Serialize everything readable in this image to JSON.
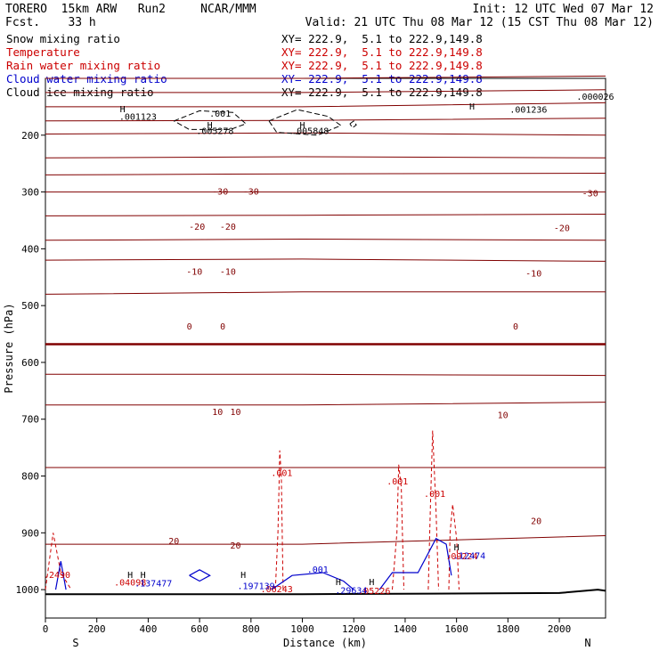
{
  "header": {
    "model": "TORERO  15km ARW   Run2     NCAR/MMM",
    "init": "Init: 12 UTC Wed 07 Mar 12",
    "fcst": "Fcst.    33 h",
    "valid": "Valid: 21 UTC Thu 08 Mar 12 (15 CST Thu 08 Mar 12)"
  },
  "legend": [
    {
      "label": "Snow mixing ratio",
      "xy": "XY= 222.9,  5.1 to 222.9,149.8",
      "color": "#000000"
    },
    {
      "label": "Temperature",
      "xy": "XY= 222.9,  5.1 to 222.9,149.8",
      "color": "#cc0000"
    },
    {
      "label": "Rain water mixing ratio",
      "xy": "XY= 222.9,  5.1 to 222.9,149.8",
      "color": "#cc0000"
    },
    {
      "label": "Cloud water mixing ratio",
      "xy": "XY= 222.9,  5.1 to 222.9,149.8",
      "color": "#0000cc"
    },
    {
      "label": "Cloud ice mixing ratio",
      "xy": "XY= 222.9,  5.1 to 222.9,149.8",
      "color": "#000000"
    }
  ],
  "chart_data": {
    "type": "line",
    "title": "",
    "xlabel": "Distance (km)",
    "ylabel": "Pressure (hPa)",
    "xlim": [
      0,
      2180
    ],
    "ylim": [
      1050,
      100
    ],
    "x_ticks": [
      0,
      200,
      400,
      600,
      800,
      1000,
      1200,
      1400,
      1600,
      1800,
      2000
    ],
    "y_ticks": [
      200,
      300,
      400,
      500,
      600,
      700,
      800,
      900,
      1000
    ],
    "endpoints": {
      "left": "S",
      "right": "N"
    },
    "colors": {
      "temperature": "#800000",
      "rain": "#cc0000",
      "cloud_water": "#0000cc",
      "snow": "#000000",
      "terrain": "#000000"
    },
    "temperature_isotherms": [
      {
        "value": -60,
        "points": [
          [
            0,
            100
          ],
          [
            1000,
            100
          ],
          [
            2180,
            96
          ]
        ]
      },
      {
        "value": -55,
        "points": [
          [
            0,
            125
          ],
          [
            1000,
            125
          ],
          [
            2180,
            120
          ]
        ]
      },
      {
        "value": -50,
        "points": [
          [
            0,
            150
          ],
          [
            1000,
            150
          ],
          [
            2180,
            143
          ]
        ]
      },
      {
        "value": -45,
        "points": [
          [
            0,
            175
          ],
          [
            1000,
            174
          ],
          [
            2180,
            170
          ]
        ]
      },
      {
        "value": -40,
        "points": [
          [
            0,
            198
          ],
          [
            1000,
            196
          ],
          [
            2180,
            200
          ]
        ]
      },
      {
        "value": -35,
        "points": [
          [
            0,
            240
          ],
          [
            1000,
            238
          ],
          [
            2180,
            240
          ]
        ]
      },
      {
        "value": -30,
        "points": [
          [
            0,
            270
          ],
          [
            1000,
            268
          ],
          [
            2180,
            267
          ]
        ]
      },
      {
        "value": -25,
        "points": [
          [
            0,
            300
          ],
          [
            1000,
            300
          ],
          [
            2180,
            300
          ]
        ]
      },
      {
        "value": -20,
        "points": [
          [
            0,
            342
          ],
          [
            1000,
            341
          ],
          [
            2180,
            339
          ]
        ]
      },
      {
        "value": -15,
        "points": [
          [
            0,
            385
          ],
          [
            1000,
            383
          ],
          [
            2180,
            385
          ]
        ]
      },
      {
        "value": -10,
        "points": [
          [
            0,
            420
          ],
          [
            1000,
            418
          ],
          [
            2180,
            422
          ]
        ]
      },
      {
        "value": -5,
        "points": [
          [
            0,
            480
          ],
          [
            1000,
            476
          ],
          [
            2180,
            476
          ]
        ]
      },
      {
        "value": 0,
        "points": [
          [
            0,
            568
          ],
          [
            1000,
            568
          ],
          [
            2180,
            568
          ]
        ]
      },
      {
        "value": 5,
        "points": [
          [
            0,
            621
          ],
          [
            1000,
            621
          ],
          [
            2180,
            623
          ]
        ]
      },
      {
        "value": 10,
        "points": [
          [
            0,
            675
          ],
          [
            1000,
            675
          ],
          [
            2180,
            670
          ]
        ]
      },
      {
        "value": 15,
        "points": [
          [
            0,
            785
          ],
          [
            1000,
            785
          ],
          [
            2180,
            785
          ]
        ]
      },
      {
        "value": 20,
        "points": [
          [
            0,
            920
          ],
          [
            1000,
            920
          ],
          [
            2180,
            905
          ]
        ]
      }
    ],
    "temperature_labels": [
      {
        "text": "-30",
        "x": 680,
        "p": 300
      },
      {
        "text": "-30",
        "x": 800,
        "p": 300
      },
      {
        "text": "-30",
        "x": 2120,
        "p": 303
      },
      {
        "text": "-20",
        "x": 590,
        "p": 362
      },
      {
        "text": "-20",
        "x": 710,
        "p": 362
      },
      {
        "text": "-20",
        "x": 2010,
        "p": 364
      },
      {
        "text": "-10",
        "x": 580,
        "p": 441
      },
      {
        "text": "-10",
        "x": 710,
        "p": 441
      },
      {
        "text": "-10",
        "x": 1900,
        "p": 444
      },
      {
        "text": "0",
        "x": 560,
        "p": 537
      },
      {
        "text": "0",
        "x": 690,
        "p": 537
      },
      {
        "text": "0",
        "x": 1830,
        "p": 537
      },
      {
        "text": "10",
        "x": 670,
        "p": 688
      },
      {
        "text": "10",
        "x": 740,
        "p": 688
      },
      {
        "text": "10",
        "x": 1780,
        "p": 693
      },
      {
        "text": "20",
        "x": 500,
        "p": 915
      },
      {
        "text": "20",
        "x": 740,
        "p": 923
      },
      {
        "text": "20",
        "x": 1910,
        "p": 880
      }
    ],
    "rain_contours": [
      {
        "value": 0.001,
        "points": [
          [
            895,
            1000
          ],
          [
            905,
            900
          ],
          [
            910,
            800
          ],
          [
            912,
            755
          ],
          [
            918,
            800
          ],
          [
            925,
            1000
          ]
        ]
      },
      {
        "value": 0.001,
        "points": [
          [
            1350,
            1000
          ],
          [
            1368,
            900
          ],
          [
            1375,
            780
          ],
          [
            1385,
            820
          ],
          [
            1395,
            1000
          ]
        ]
      },
      {
        "value": 0.001,
        "points": [
          [
            1490,
            1000
          ],
          [
            1498,
            860
          ],
          [
            1507,
            720
          ],
          [
            1520,
            860
          ],
          [
            1530,
            1000
          ]
        ]
      },
      {
        "value": 0.001,
        "points": [
          [
            1570,
            1000
          ],
          [
            1575,
            900
          ],
          [
            1585,
            850
          ],
          [
            1600,
            910
          ],
          [
            1610,
            1000
          ]
        ]
      },
      {
        "value": 0.001,
        "points": [
          [
            0,
            1000
          ],
          [
            30,
            900
          ],
          [
            60,
            970
          ],
          [
            100,
            1000
          ]
        ]
      }
    ],
    "rain_labels": [
      {
        "text": ".001",
        "x": 920,
        "p": 795
      },
      {
        "text": ".001",
        "x": 1370,
        "p": 810
      },
      {
        "text": ".001",
        "x": 1515,
        "p": 832
      },
      {
        "text": ".2490",
        "x": 45,
        "p": 975
      },
      {
        "text": ".04098",
        "x": 330,
        "p": 988
      },
      {
        "text": ".06243",
        "x": 900,
        "p": 1000
      },
      {
        "text": ".05226",
        "x": 1280,
        "p": 1003
      },
      {
        "text": ".09224",
        "x": 1620,
        "p": 942
      }
    ],
    "cloud_water_contours": [
      {
        "value": 0.001,
        "points": [
          [
            40,
            1000
          ],
          [
            60,
            950
          ],
          [
            80,
            1000
          ]
        ]
      },
      {
        "value": 0.001,
        "points": [
          [
            560,
            975
          ],
          [
            600,
            965
          ],
          [
            640,
            975
          ],
          [
            600,
            985
          ],
          [
            560,
            975
          ]
        ]
      },
      {
        "value": 0.001,
        "points": [
          [
            880,
            1000
          ],
          [
            960,
            975
          ],
          [
            1080,
            970
          ],
          [
            1160,
            985
          ],
          [
            1200,
            1000
          ]
        ]
      },
      {
        "value": 0.001,
        "points": [
          [
            1300,
            1000
          ],
          [
            1350,
            970
          ],
          [
            1450,
            970
          ],
          [
            1520,
            910
          ],
          [
            1560,
            920
          ],
          [
            1580,
            975
          ]
        ]
      }
    ],
    "cloud_water_labels": [
      {
        "text": ".137477",
        "x": 420,
        "p": 990
      },
      {
        "text": ".197139",
        "x": 820,
        "p": 994
      },
      {
        "text": ".001",
        "x": 1060,
        "p": 965
      },
      {
        "text": ".29634",
        "x": 1190,
        "p": 1002
      },
      {
        "text": ".12474",
        "x": 1650,
        "p": 941
      }
    ],
    "snow_contours": [
      {
        "value": 0.001,
        "points": [
          [
            500,
            175
          ],
          [
            600,
            157
          ],
          [
            730,
            160
          ],
          [
            780,
            180
          ],
          [
            720,
            190
          ],
          [
            560,
            190
          ],
          [
            500,
            175
          ]
        ]
      },
      {
        "value": 0.001,
        "points": [
          [
            870,
            175
          ],
          [
            980,
            155
          ],
          [
            1100,
            167
          ],
          [
            1150,
            183
          ],
          [
            1060,
            200
          ],
          [
            900,
            195
          ],
          [
            870,
            175
          ]
        ]
      },
      {
        "value": 0.001,
        "points": [
          [
            1185,
            180
          ],
          [
            1200,
            175
          ],
          [
            1210,
            182
          ],
          [
            1195,
            187
          ],
          [
            1185,
            180
          ]
        ]
      }
    ],
    "snow_labels": [
      {
        "text": ".001",
        "x": 680,
        "p": 163
      },
      {
        "text": ".001123",
        "x": 360,
        "p": 168
      },
      {
        "text": ".005278",
        "x": 660,
        "p": 193
      },
      {
        "text": ".005848",
        "x": 1030,
        "p": 193
      },
      {
        "text": ".001236",
        "x": 1880,
        "p": 156
      },
      {
        "text": ".000026",
        "x": 2140,
        "p": 133
      }
    ],
    "high_markers": [
      {
        "text": "H",
        "x": 300,
        "p": 155
      },
      {
        "text": "H",
        "x": 640,
        "p": 183
      },
      {
        "text": "H",
        "x": 1000,
        "p": 183
      },
      {
        "text": "H",
        "x": 1660,
        "p": 150
      },
      {
        "text": "H",
        "x": 330,
        "p": 975
      },
      {
        "text": "H",
        "x": 380,
        "p": 975
      },
      {
        "text": "H",
        "x": 770,
        "p": 975
      },
      {
        "text": "H",
        "x": 1140,
        "p": 987
      },
      {
        "text": "H",
        "x": 1270,
        "p": 987
      },
      {
        "text": "H",
        "x": 1600,
        "p": 926
      }
    ],
    "terrain": [
      [
        0,
        1008
      ],
      [
        500,
        1008
      ],
      [
        1000,
        1008
      ],
      [
        1500,
        1007
      ],
      [
        2000,
        1006
      ],
      [
        2150,
        1000
      ],
      [
        2180,
        1002
      ]
    ]
  }
}
